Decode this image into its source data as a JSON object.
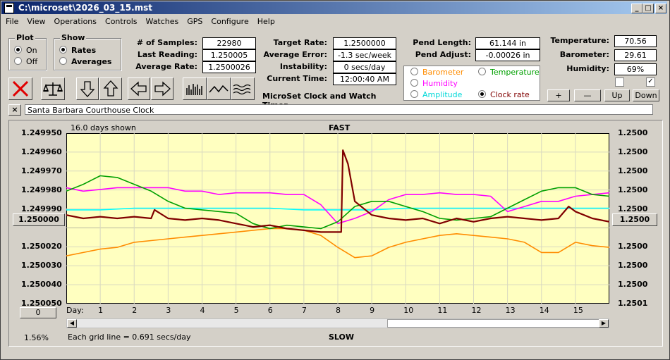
{
  "window": {
    "title": "C:\\microset\\2026_03_15.mst"
  },
  "menu": [
    "File",
    "View",
    "Operations",
    "Controls",
    "Watches",
    "GPS",
    "Configure",
    "Help"
  ],
  "plot_group": {
    "label": "Plot",
    "on": "On",
    "off": "Off"
  },
  "show_group": {
    "label": "Show",
    "rates": "Rates",
    "averages": "Averages"
  },
  "fields": {
    "samples_label": "# of Samples:",
    "samples": "22980",
    "last_reading_label": "Last Reading:",
    "last_reading": "1.250005",
    "average_rate_label": "Average Rate:",
    "average_rate": "1.2500026",
    "target_rate_label": "Target Rate:",
    "target_rate": "1.2500000",
    "average_error_label": "Average Error:",
    "average_error": "-1.3 sec/week",
    "instability_label": "Instability:",
    "instability": "0 secs/day",
    "current_time_label": "Current Time:",
    "current_time": "12:00:40 AM",
    "pend_length_label": "Pend Length:",
    "pend_length": "61.144 in",
    "pend_adjust_label": "Pend Adjust:",
    "pend_adjust": "-0.00026 in",
    "temperature_label": "Temperature:",
    "temperature": "70.56",
    "barometer_label": "Barometer:",
    "barometer": "29.61",
    "humidity_label": "Humidity:",
    "humidity": "69%"
  },
  "app_name": "MicroSet Clock and Watch Timer",
  "legend": {
    "barometer": "Barometer",
    "temperature": "Temperature",
    "humidity": "Humidity",
    "amplitude": "Amplitude",
    "clock_rate": "Clock rate"
  },
  "adjust_buttons": {
    "plus": "+",
    "minus": "—",
    "up": "Up",
    "down": "Down"
  },
  "close_x": "×",
  "clock_name": "Santa Barbara Courthouse Clock",
  "chart": {
    "days_shown": "16.0 days shown",
    "top_label": "FAST",
    "bottom_label": "SLOW",
    "grid_note": "Each grid line = 0.691 secs/day",
    "percent": "1.56%",
    "center_left": "1.250000",
    "center_right": "1.2500",
    "bottom_left_btn": "0",
    "day_label": "Day:"
  },
  "colors": {
    "barometer": "#ff8c00",
    "temperature": "#00a000",
    "humidity": "#ff00ff",
    "amplitude": "#00ffff",
    "clock_rate": "#800000",
    "plot_bg": "#ffffc0"
  },
  "chart_data": {
    "type": "line",
    "xlabel": "Day:",
    "x_ticks": [
      1,
      2,
      3,
      4,
      5,
      6,
      7,
      8,
      9,
      10,
      11,
      12,
      13,
      14,
      15
    ],
    "xlim": [
      0,
      16
    ],
    "y_ticks_left": [
      "1.249950",
      "1.249960",
      "1.249970",
      "1.249980",
      "1.249990",
      "1.250000",
      "1.250020",
      "1.250030",
      "1.250040",
      "1.250050"
    ],
    "y_ticks_right": [
      "1.2500",
      "1.2500",
      "1.2500",
      "1.2500",
      "1.2500",
      "1.2500",
      "1.2500",
      "1.2500",
      "1.2500",
      "1.2501"
    ],
    "ylim": [
      1.24995,
      1.25005
    ],
    "series": [
      {
        "name": "Clock rate",
        "color": "#800000",
        "x": [
          0,
          0.5,
          1,
          1.5,
          2,
          2.5,
          2.6,
          3,
          3.5,
          4,
          4.5,
          5,
          5.5,
          6,
          6.5,
          7,
          7.5,
          8.1,
          8.15,
          8.3,
          8.5,
          9,
          9.5,
          10,
          10.5,
          11,
          11.5,
          12,
          12.5,
          13,
          13.5,
          14,
          14.5,
          14.8,
          15,
          15.5,
          16
        ],
        "y": [
          1.249998,
          1.25,
          1.249999,
          1.25,
          1.249999,
          1.25,
          1.249995,
          1.25,
          1.250001,
          1.25,
          1.250001,
          1.250003,
          1.250005,
          1.250004,
          1.250006,
          1.250007,
          1.250008,
          1.250008,
          1.24996,
          1.249968,
          1.24999,
          1.249998,
          1.25,
          1.250001,
          1.25,
          1.250003,
          1.25,
          1.250002,
          1.25,
          1.249999,
          1.25,
          1.250001,
          1.25,
          1.249993,
          1.249996,
          1.25,
          1.250002
        ]
      },
      {
        "name": "Temperature",
        "color": "#00a000",
        "x": [
          0,
          0.5,
          1,
          1.5,
          2,
          2.5,
          3,
          3.5,
          4,
          4.5,
          5,
          5.5,
          6,
          6.5,
          7,
          7.5,
          8,
          8.5,
          9,
          9.5,
          10,
          10.5,
          11,
          11.5,
          12,
          12.5,
          13,
          13.5,
          14,
          14.5,
          15,
          15.5,
          16
        ],
        "y": [
          1.249984,
          1.24998,
          1.249975,
          1.249976,
          1.24998,
          1.249984,
          1.24999,
          1.249994,
          1.249995,
          1.249996,
          1.249997,
          1.250003,
          1.250006,
          1.250004,
          1.250005,
          1.250006,
          1.250002,
          1.249993,
          1.24999,
          1.24999,
          1.249993,
          1.249996,
          1.25,
          1.250001,
          1.25,
          1.249999,
          1.249994,
          1.249989,
          1.249984,
          1.249982,
          1.249982,
          1.249986,
          1.249987
        ]
      },
      {
        "name": "Humidity",
        "color": "#ff00ff",
        "x": [
          0,
          0.5,
          1,
          1.5,
          2,
          2.5,
          3,
          3.5,
          4,
          4.5,
          5,
          5.5,
          6,
          6.5,
          7,
          7.5,
          8,
          8.5,
          9,
          9.5,
          10,
          10.5,
          11,
          11.5,
          12,
          12.5,
          13,
          13.5,
          14,
          14.5,
          15,
          15.5,
          16
        ],
        "y": [
          1.249982,
          1.249984,
          1.249983,
          1.249982,
          1.249982,
          1.249982,
          1.249982,
          1.249984,
          1.249984,
          1.249986,
          1.249985,
          1.249985,
          1.249985,
          1.249986,
          1.249986,
          1.249992,
          1.250003,
          1.25,
          1.249996,
          1.249989,
          1.249986,
          1.249986,
          1.249985,
          1.249986,
          1.249986,
          1.249987,
          1.249996,
          1.249993,
          1.24999,
          1.24999,
          1.249987,
          1.249986,
          1.249985
        ]
      },
      {
        "name": "Amplitude",
        "color": "#00ffff",
        "x": [
          0,
          1,
          2,
          3,
          4,
          5,
          6,
          7,
          8,
          9,
          10,
          11,
          12,
          13,
          14,
          15,
          16
        ],
        "y": [
          1.249995,
          1.249995,
          1.249994,
          1.249994,
          1.249994,
          1.249994,
          1.249994,
          1.249995,
          1.249995,
          1.249995,
          1.249994,
          1.249994,
          1.249994,
          1.249994,
          1.249994,
          1.249994,
          1.249994
        ]
      },
      {
        "name": "Barometer",
        "color": "#ff8c00",
        "x": [
          0,
          0.5,
          1,
          1.5,
          2,
          2.5,
          3,
          3.5,
          4,
          4.5,
          5,
          5.5,
          6,
          6.5,
          7,
          7.5,
          8,
          8.5,
          9,
          9.5,
          10,
          10.5,
          11,
          11.5,
          12,
          12.5,
          13,
          13.5,
          14,
          14.5,
          15,
          15.5,
          16
        ],
        "y": [
          1.250022,
          1.25002,
          1.250018,
          1.250017,
          1.250014,
          1.250013,
          1.250012,
          1.250011,
          1.25001,
          1.250009,
          1.250008,
          1.250007,
          1.250006,
          1.250006,
          1.250007,
          1.25001,
          1.250017,
          1.250023,
          1.250022,
          1.250017,
          1.250014,
          1.250012,
          1.25001,
          1.250009,
          1.25001,
          1.250011,
          1.250012,
          1.250014,
          1.25002,
          1.25002,
          1.250014,
          1.250016,
          1.250017
        ]
      }
    ]
  }
}
